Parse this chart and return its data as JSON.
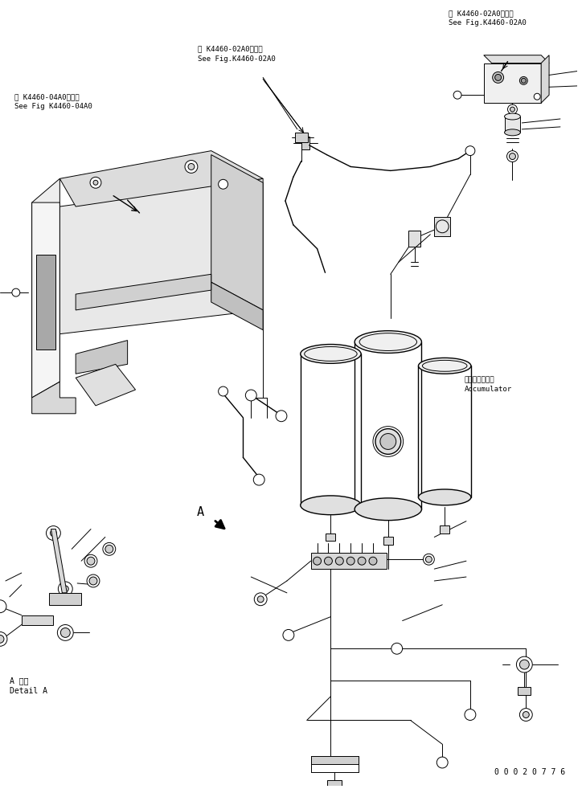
{
  "bg_color": "#ffffff",
  "line_color": "#000000",
  "lw": 0.7,
  "lw2": 1.0,
  "figsize": [
    7.24,
    9.82
  ],
  "dpi": 100,
  "part_number": "00020776",
  "texts": {
    "top_right_ref": [
      563,
      8,
      "第 K4460-02A0図参照\nSee Fig.K4460-02A0"
    ],
    "top_center_ref": [
      248,
      53,
      "第 K4460-02A0図参照\nSee Fig.K4460-02A0"
    ],
    "top_left_ref": [
      18,
      113,
      "第 K4460-04A0図参照\nSee Fig K4460-04A0"
    ],
    "accumulator": [
      583,
      468,
      "アキュムレータ\nAccumulator"
    ],
    "detail_a": [
      12,
      845,
      "A 詳細\nDetail A"
    ],
    "letter_a": [
      247,
      631,
      "A"
    ],
    "part_num": [
      620,
      960,
      "0 0 0 2 0 7 7 6"
    ]
  }
}
